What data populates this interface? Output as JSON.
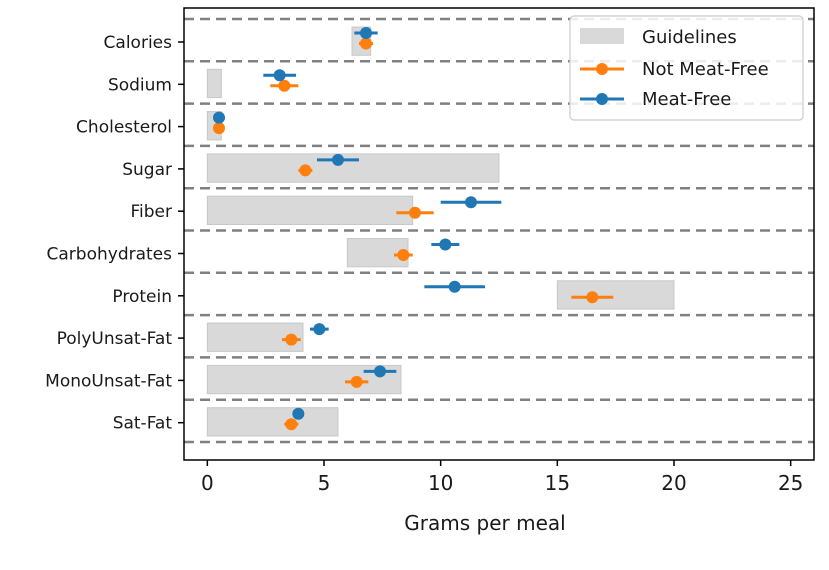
{
  "chart_data": {
    "type": "errorbar",
    "xlabel": "Grams per meal",
    "ylabel": "",
    "xlim": [
      -1,
      26
    ],
    "x_ticks": [
      0,
      5,
      10,
      15,
      20,
      25
    ],
    "grid": false,
    "separators": "dashed horizontal lines between categories",
    "legend_placement": "top-right",
    "categories": [
      "Calories",
      "Sodium",
      "Cholesterol",
      "Sugar",
      "Fiber",
      "Carbohydrates",
      "Protein",
      "PolyUnsat-Fat",
      "MonoUnsat-Fat",
      "Sat-Fat"
    ],
    "guidelines": {
      "name": "Guidelines",
      "color": "#d9d9d9",
      "ranges": [
        [
          6.2,
          7.0
        ],
        [
          0.0,
          0.6
        ],
        [
          0.0,
          0.6
        ],
        [
          0.0,
          12.5
        ],
        [
          0.0,
          8.8
        ],
        [
          6.0,
          8.6
        ],
        [
          15.0,
          20.0
        ],
        [
          0.0,
          4.1
        ],
        [
          0.0,
          8.3
        ],
        [
          0.0,
          5.6
        ]
      ]
    },
    "series": [
      {
        "name": "Not Meat-Free",
        "color": "#ff7f0e",
        "values": [
          6.8,
          3.3,
          0.5,
          4.2,
          8.9,
          8.4,
          16.5,
          3.6,
          6.4,
          3.6
        ],
        "errors": [
          0.3,
          0.6,
          0.1,
          0.3,
          0.8,
          0.4,
          0.9,
          0.4,
          0.5,
          0.3
        ]
      },
      {
        "name": "Meat-Free",
        "color": "#1f77b4",
        "values": [
          6.8,
          3.1,
          0.5,
          5.6,
          11.3,
          10.2,
          10.6,
          4.8,
          7.4,
          3.9
        ],
        "errors": [
          0.5,
          0.7,
          0.1,
          0.9,
          1.3,
          0.6,
          1.3,
          0.4,
          0.7,
          0.1
        ]
      }
    ]
  }
}
